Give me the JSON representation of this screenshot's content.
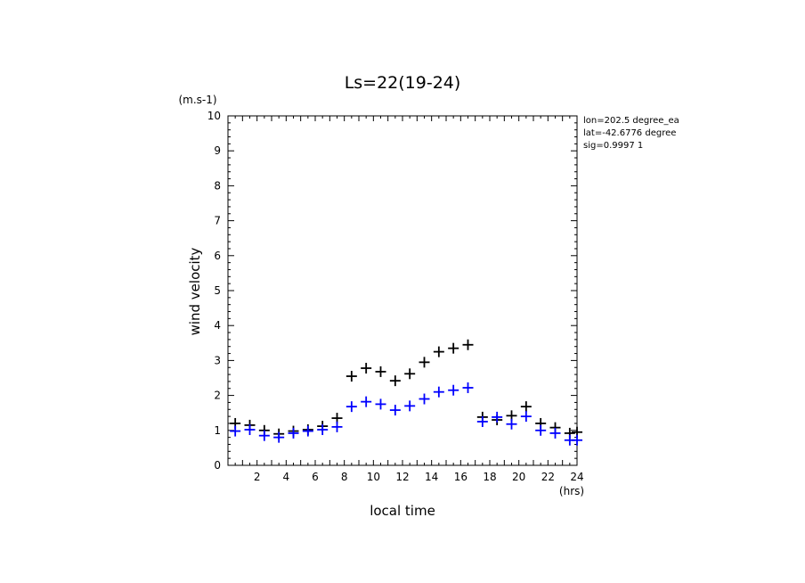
{
  "chart_data": {
    "type": "scatter",
    "title": "Ls=22(19-24)",
    "ylabel": "wind velocity",
    "xlabel": "local time",
    "y_unit": "(m.s-1)",
    "x_unit": "(hrs)",
    "xlim": [
      0,
      24
    ],
    "ylim": [
      0,
      10
    ],
    "x_ticks": [
      2,
      4,
      6,
      8,
      10,
      12,
      14,
      16,
      18,
      20,
      22,
      24
    ],
    "y_ticks": [
      0,
      1,
      2,
      3,
      4,
      5,
      6,
      7,
      8,
      9,
      10
    ],
    "grid": false,
    "info_lines": [
      "lon=202.5 degree_ea",
      "lat=-42.6776 degree",
      "sig=0.9997 1"
    ],
    "series": [
      {
        "color": "#000000",
        "marker": "+",
        "x": [
          0.5,
          1.5,
          2.5,
          3.5,
          4.5,
          5.5,
          6.5,
          7.5,
          8.5,
          9.5,
          10.5,
          11.5,
          12.5,
          13.5,
          14.5,
          15.5,
          16.5,
          17.5,
          18.5,
          19.5,
          20.5,
          21.5,
          22.5,
          23.5,
          24.0
        ],
        "y": [
          1.2,
          1.15,
          1.0,
          0.9,
          0.98,
          1.02,
          1.12,
          1.35,
          2.55,
          2.78,
          2.68,
          2.42,
          2.62,
          2.95,
          3.25,
          3.35,
          3.45,
          1.38,
          1.3,
          1.42,
          1.68,
          1.2,
          1.08,
          0.92,
          0.95
        ]
      },
      {
        "color": "#0000ff",
        "marker": "+",
        "x": [
          0.5,
          1.5,
          2.5,
          3.5,
          4.5,
          5.5,
          6.5,
          7.5,
          8.5,
          9.5,
          10.5,
          11.5,
          12.5,
          13.5,
          14.5,
          15.5,
          16.5,
          17.5,
          18.5,
          19.5,
          20.5,
          21.5,
          22.5,
          23.5,
          24.0
        ],
        "y": [
          0.98,
          1.02,
          0.85,
          0.8,
          0.92,
          0.98,
          1.02,
          1.1,
          1.68,
          1.82,
          1.75,
          1.58,
          1.7,
          1.9,
          2.1,
          2.15,
          2.22,
          1.25,
          1.38,
          1.18,
          1.4,
          1.0,
          0.92,
          0.72,
          0.72
        ]
      }
    ]
  }
}
